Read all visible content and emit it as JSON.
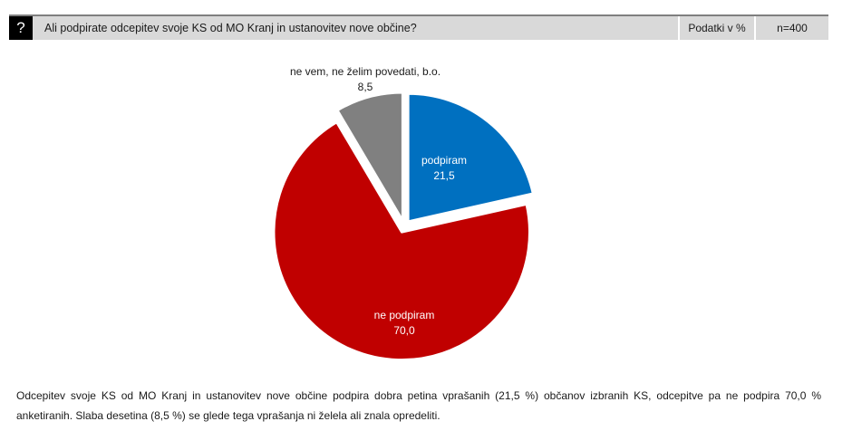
{
  "header": {
    "icon": "?",
    "question": "Ali podpirate odcepitev svoje KS od MO Kranj in ustanovitev nove občine?",
    "unit_label": "Podatki v %",
    "sample_label": "n=400"
  },
  "chart_data": {
    "type": "pie",
    "title": "Ali podpirate odcepitev svoje KS od MO Kranj in ustanovitev nove občine?",
    "slices": [
      {
        "label": "podpiram",
        "value": 21.5,
        "display": "21,5",
        "color": "#0070c0"
      },
      {
        "label": "ne podpiram",
        "value": 70.0,
        "display": "70,0",
        "color": "#c00000"
      },
      {
        "label": "ne vem, ne želim povedati, b.o.",
        "value": 8.5,
        "display": "8,5",
        "color": "#808080"
      }
    ],
    "start_angle_deg": 0,
    "direction": "clockwise",
    "exploded": true
  },
  "summary": "Odcepitev svoje KS od MO Kranj in ustanovitev nove občine podpira dobra petina vprašanih (21,5 %) občanov izbranih KS, odcepitve pa ne podpira 70,0 % anketiranih. Slaba desetina (8,5 %) se glede tega vprašanja ni želela ali znala opredeliti."
}
